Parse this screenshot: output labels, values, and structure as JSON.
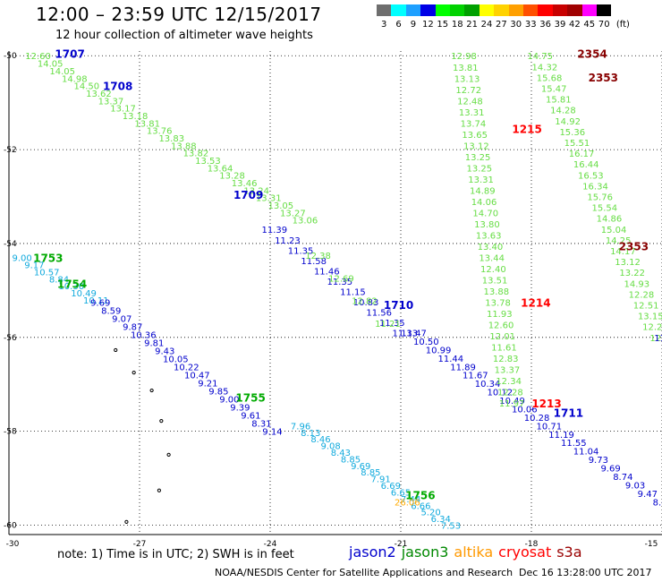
{
  "header": {
    "title": "12:00 – 23:59 UTC 12/15/2017",
    "subtitle": "12 hour collection of altimeter wave heights"
  },
  "color_scale": {
    "unit": "(ft)",
    "bins": [
      {
        "label": "3",
        "color": "#6e6e6e"
      },
      {
        "label": "6",
        "color": "#00ffff"
      },
      {
        "label": "9",
        "color": "#1ea0ff"
      },
      {
        "label": "12",
        "color": "#0000e6"
      },
      {
        "label": "15",
        "color": "#00ff00"
      },
      {
        "label": "18",
        "color": "#00d200"
      },
      {
        "label": "21",
        "color": "#00a000"
      },
      {
        "label": "24",
        "color": "#ffff00"
      },
      {
        "label": "27",
        "color": "#ffd200"
      },
      {
        "label": "30",
        "color": "#ffa000"
      },
      {
        "label": "33",
        "color": "#ff5000"
      },
      {
        "label": "36",
        "color": "#ff0000"
      },
      {
        "label": "39",
        "color": "#c80000"
      },
      {
        "label": "42",
        "color": "#a00000"
      },
      {
        "label": "45",
        "color": "#ff00ff"
      },
      {
        "label": "70",
        "color": "#000000"
      }
    ]
  },
  "legend": [
    {
      "name": "jason2",
      "color": "#0000cc"
    },
    {
      "name": "jason3",
      "color": "#008800"
    },
    {
      "name": "altika",
      "color": "#ff9900"
    },
    {
      "name": "cryosat",
      "color": "#ff0000"
    },
    {
      "name": "s3a",
      "color": "#990000"
    }
  ],
  "note": "note: 1) Time is in UTC; 2) SWH is in feet",
  "footer": {
    "credit": "NOAA/NESDIS Center for Satellite Applications and Research",
    "timestamp": "Dec 16 13:28:00 UTC 2017"
  },
  "chart_data": {
    "type": "scatter",
    "title": "12:00 – 23:59 UTC 12/15/2017",
    "subtitle": "12 hour collection of altimeter wave heights",
    "xlabel": "",
    "ylabel": "",
    "xlim": [
      -30,
      -15
    ],
    "ylim": [
      -60.2,
      -49.9
    ],
    "grid": true,
    "x_ticks": [
      -30,
      -27,
      -24,
      -21,
      -18,
      -15
    ],
    "y_ticks": [
      -50,
      -52,
      -54,
      -56,
      -58,
      -60
    ],
    "colors": {
      "light_green": "#66dd44",
      "light_blue": "#11aadd",
      "blue": "#0000cc",
      "cyan": "#00bbee",
      "green": "#00aa00",
      "dark_green": "#007700",
      "red": "#ff0000",
      "dark_red": "#880000",
      "orange": "#ffaa00"
    },
    "islands": [
      {
        "lon": -27.55,
        "lat": -56.27
      },
      {
        "lon": -27.13,
        "lat": -56.75
      },
      {
        "lon": -26.72,
        "lat": -57.13
      },
      {
        "lon": -26.5,
        "lat": -57.78
      },
      {
        "lon": -26.33,
        "lat": -58.5
      },
      {
        "lon": -26.55,
        "lat": -59.26
      },
      {
        "lon": -27.3,
        "lat": -59.93
      }
    ],
    "pass_labels": [
      {
        "text": "1707",
        "lon": -28.6,
        "lat": -49.95,
        "color": "blue"
      },
      {
        "text": "1708",
        "lon": -27.5,
        "lat": -50.63,
        "color": "blue"
      },
      {
        "text": "1709",
        "lon": -24.5,
        "lat": -52.95,
        "color": "blue"
      },
      {
        "text": "1710",
        "lon": -21.05,
        "lat": -55.3,
        "color": "blue"
      },
      {
        "text": "1711",
        "lon": -17.15,
        "lat": -57.6,
        "color": "blue"
      },
      {
        "text": "1753",
        "lon": -29.1,
        "lat": -54.3,
        "color": "green"
      },
      {
        "text": "1754",
        "lon": -28.55,
        "lat": -54.85,
        "color": "green"
      },
      {
        "text": "1755",
        "lon": -24.45,
        "lat": -57.27,
        "color": "green"
      },
      {
        "text": "1756",
        "lon": -20.55,
        "lat": -59.35,
        "color": "green"
      },
      {
        "text": "1215",
        "lon": -18.1,
        "lat": -51.55,
        "color": "red"
      },
      {
        "text": "1214",
        "lon": -17.9,
        "lat": -55.25,
        "color": "red"
      },
      {
        "text": "1213",
        "lon": -17.65,
        "lat": -57.4,
        "color": "red"
      },
      {
        "text": "2354",
        "lon": -16.6,
        "lat": -49.95,
        "color": "dark_red"
      },
      {
        "text": "2353",
        "lon": -16.35,
        "lat": -50.45,
        "color": "dark_red"
      },
      {
        "text": "2353",
        "lon": -15.65,
        "lat": -54.05,
        "color": "dark_red"
      }
    ],
    "tracks": [
      {
        "color": "light_green",
        "start": [
          -29.33,
          -50.0
        ],
        "end": [
          -23.2,
          -53.5
        ],
        "values": [
          "12.60",
          "14.05",
          "14.05",
          "14.98",
          "14.50",
          "13.62",
          "13.37",
          "13.17",
          "13.18",
          "13.81",
          "13.76",
          "13.83",
          "13.88",
          "13.82",
          "13.53",
          "13.64",
          "13.28",
          "13.46",
          "13.24",
          "13.31",
          "13.05",
          "13.27",
          "13.06"
        ]
      },
      {
        "color": "blue",
        "start": [
          -23.9,
          -53.7
        ],
        "end": [
          -20.9,
          -55.9
        ],
        "values": [
          "11.39",
          "11.23",
          "11.35",
          "11.58",
          "11.46",
          "11.35",
          "11.15",
          "10.83",
          "11.56",
          "11.35",
          "11.33"
        ]
      },
      {
        "color": "light_green",
        "start": [
          -22.9,
          -54.25
        ],
        "end": [
          -21.3,
          -55.7
        ],
        "values": [
          "12.38",
          "12.69",
          "12.82",
          "11.21"
        ]
      },
      {
        "color": "blue",
        "start": [
          -20.7,
          -55.9
        ],
        "end": [
          -15.05,
          -59.5
        ],
        "values": [
          "11.47",
          "10.50",
          "10.99",
          "11.44",
          "11.89",
          "11.67",
          "10.34",
          "10.12",
          "10.49",
          "10.06",
          "10.28",
          "10.71",
          "11.19",
          "11.55",
          "11.04",
          "9.73",
          "9.69",
          "8.74",
          "9.03",
          "9.47",
          "8.6"
        ]
      },
      {
        "color": "light_green",
        "start": [
          -19.55,
          -50.0
        ],
        "end": [
          -18.45,
          -57.4
        ],
        "values": [
          "12.98",
          "13.81",
          "13.13",
          "12.72",
          "12.48",
          "13.31",
          "13.74",
          "13.65",
          "13.12",
          "13.25",
          "13.25",
          "13.31",
          "14.89",
          "14.06",
          "14.70",
          "13.80",
          "13.63",
          "13.40",
          "13.44",
          "12.40",
          "13.51",
          "13.88",
          "13.78",
          "11.93",
          "12.60",
          "12.01",
          "11.61",
          "12.83",
          "13.37",
          "12.34",
          "12.28",
          "11.97"
        ]
      },
      {
        "color": "light_green",
        "start": [
          -17.8,
          -50.0
        ],
        "end": [
          -15.05,
          -56.0
        ],
        "values": [
          "14.75",
          "14.32",
          "15.68",
          "15.47",
          "15.81",
          "14.28",
          "14.92",
          "15.36",
          "15.51",
          "16.17",
          "16.44",
          "16.53",
          "16.34",
          "15.76",
          "15.54",
          "14.86",
          "15.04",
          "14.25",
          "14.17",
          "13.12",
          "13.22",
          "14.93",
          "12.28",
          "12.51",
          "13.15",
          "12.25",
          "12.0"
        ]
      },
      {
        "color": "blue",
        "start": [
          -15.05,
          -56.0
        ],
        "end": [
          -15.05,
          -56.0
        ],
        "values": [
          "11"
        ]
      },
      {
        "color": "light_blue",
        "start": [
          -29.7,
          -54.3
        ],
        "end": [
          -28.0,
          -55.2
        ],
        "values": [
          "9.00",
          "9.17",
          "10.57",
          "8.84",
          "10.30",
          "10.49",
          "10.11"
        ]
      },
      {
        "color": "blue",
        "start": [
          -27.9,
          -55.25
        ],
        "end": [
          -23.95,
          -58.0
        ],
        "values": [
          "9.69",
          "8.59",
          "9.07",
          "9.87",
          "10.36",
          "9.81",
          "9.43",
          "10.05",
          "10.22",
          "10.47",
          "9.21",
          "9.85",
          "9.00",
          "9.39",
          "9.61",
          "8.31",
          "9.14"
        ]
      },
      {
        "color": "light_blue",
        "start": [
          -23.3,
          -57.88
        ],
        "end": [
          -19.85,
          -60.0
        ],
        "values": [
          "7.96",
          "8.13",
          "8.46",
          "9.08",
          "8.43",
          "8.85",
          "9.69",
          "8.85",
          "7.91",
          "6.69",
          "6.65",
          "7.44",
          "6.66",
          "5.20",
          "6.34",
          "7.53"
        ]
      }
    ],
    "orange_points": [
      {
        "value": "26.06",
        "lon": -20.85,
        "lat": -59.5
      }
    ]
  }
}
